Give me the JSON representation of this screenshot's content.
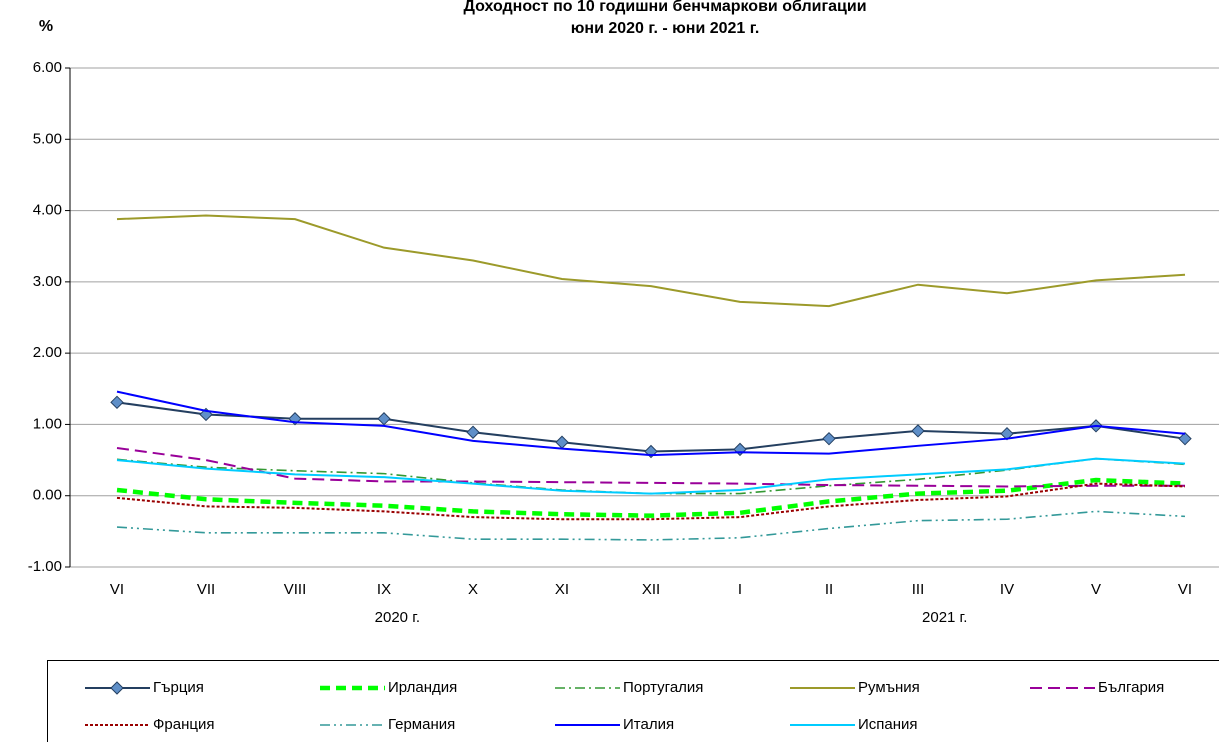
{
  "chart_data": {
    "type": "line",
    "title": "Доходност по 10 годишни бенчмаркови облигации",
    "subtitle": "юни 2020 г. - юни 2021 г.",
    "y_label": "%",
    "categories": [
      "VI",
      "VII",
      "VIII",
      "IX",
      "X",
      "XI",
      "XII",
      "I",
      "II",
      "III",
      "IV",
      "V",
      "VI"
    ],
    "group_labels": [
      "2020 г.",
      "2021 г."
    ],
    "ylim": [
      -1,
      6
    ],
    "yticks": [
      {
        "value": 6,
        "label": "6.00"
      },
      {
        "value": 5,
        "label": "5.00"
      },
      {
        "value": 4,
        "label": "4.00"
      },
      {
        "value": 3,
        "label": "3.00"
      },
      {
        "value": 2,
        "label": "2.00"
      },
      {
        "value": 1,
        "label": "1.00"
      },
      {
        "value": 0,
        "label": "0.00"
      },
      {
        "value": -1,
        "label": "-1.00"
      }
    ],
    "grid": true,
    "legend": "bottom",
    "series": [
      {
        "name": "Гърция",
        "color": "#243f60",
        "style": "solid",
        "marker": "diamond",
        "values": [
          1.31,
          1.14,
          1.08,
          1.08,
          0.89,
          0.75,
          0.62,
          0.65,
          0.8,
          0.91,
          0.87,
          0.98,
          0.8
        ]
      },
      {
        "name": "Ирландия",
        "color": "#00ff00",
        "style": "thick-dashed",
        "values": [
          0.08,
          -0.05,
          -0.1,
          -0.14,
          -0.22,
          -0.26,
          -0.28,
          -0.24,
          -0.08,
          0.03,
          0.07,
          0.22,
          0.17
        ]
      },
      {
        "name": "Португалия",
        "color": "#339933",
        "style": "dash-dot",
        "values": [
          0.51,
          0.4,
          0.35,
          0.31,
          0.18,
          0.08,
          0.03,
          0.03,
          0.14,
          0.23,
          0.36,
          0.52,
          0.44
        ]
      },
      {
        "name": "Румъния",
        "color": "#9c9a2a",
        "style": "solid",
        "values": [
          3.88,
          3.93,
          3.88,
          3.48,
          3.3,
          3.04,
          2.94,
          2.72,
          2.66,
          2.96,
          2.84,
          3.02,
          3.1
        ]
      },
      {
        "name": "България",
        "color": "#990099",
        "style": "dashed",
        "values": [
          0.67,
          0.5,
          0.24,
          0.2,
          0.2,
          0.19,
          0.18,
          0.17,
          0.15,
          0.14,
          0.13,
          0.14,
          0.14
        ]
      },
      {
        "name": "Франция",
        "color": "#990000",
        "style": "dotted",
        "values": [
          -0.03,
          -0.15,
          -0.17,
          -0.22,
          -0.3,
          -0.33,
          -0.33,
          -0.3,
          -0.15,
          -0.06,
          -0.01,
          0.17,
          0.13
        ]
      },
      {
        "name": "Германия",
        "color": "#339999",
        "style": "dash-dot-dot",
        "values": [
          -0.44,
          -0.52,
          -0.52,
          -0.52,
          -0.61,
          -0.61,
          -0.62,
          -0.59,
          -0.46,
          -0.35,
          -0.33,
          -0.22,
          -0.29
        ]
      },
      {
        "name": "Италия",
        "color": "#0000ff",
        "style": "solid",
        "values": [
          1.46,
          1.19,
          1.03,
          0.98,
          0.77,
          0.66,
          0.57,
          0.61,
          0.59,
          0.7,
          0.8,
          0.98,
          0.87
        ]
      },
      {
        "name": "Испания",
        "color": "#00ccff",
        "style": "solid",
        "values": [
          0.5,
          0.38,
          0.3,
          0.26,
          0.17,
          0.07,
          0.03,
          0.08,
          0.23,
          0.3,
          0.37,
          0.52,
          0.45
        ]
      }
    ]
  }
}
